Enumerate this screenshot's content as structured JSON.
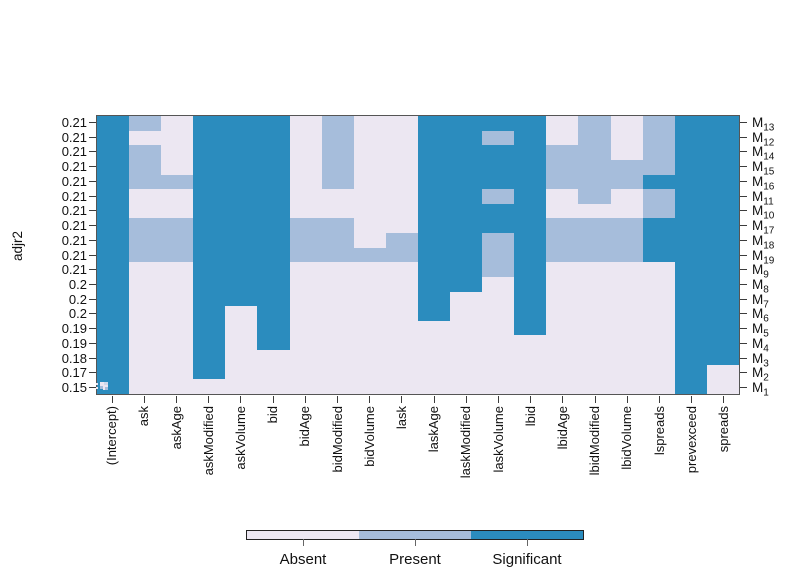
{
  "chart_data": {
    "type": "heatmap",
    "title": "",
    "ylabel": "adjr2",
    "xlabel": "",
    "columns": [
      "(Intercept)",
      "ask",
      "askAge",
      "askModified",
      "askVolume",
      "bid",
      "bidAge",
      "bidModified",
      "bidVolume",
      "lask",
      "laskAge",
      "laskModified",
      "laskVolume",
      "lbid",
      "lbidAge",
      "lbidModified",
      "lbidVolume",
      "lspreads",
      "prevexceed",
      "spreads"
    ],
    "rows": [
      {
        "model_base": "M",
        "model_sub": "13",
        "adjr2": "0.21",
        "cells": "SPASSSAPAASSSSAPAPSS"
      },
      {
        "model_base": "M",
        "model_sub": "12",
        "adjr2": "0.21",
        "cells": "SAASSSAPAASSPSAPAPSS"
      },
      {
        "model_base": "M",
        "model_sub": "14",
        "adjr2": "0.21",
        "cells": "SPASSSAPAASSSSPPAPSS"
      },
      {
        "model_base": "M",
        "model_sub": "15",
        "adjr2": "0.21",
        "cells": "SPASSSAPAASSSSPPPPSS"
      },
      {
        "model_base": "M",
        "model_sub": "16",
        "adjr2": "0.21",
        "cells": "SPPSSSAPAASSSSPPPSSS"
      },
      {
        "model_base": "M",
        "model_sub": "11",
        "adjr2": "0.21",
        "cells": "SAASSSAAAASSPSAPAPSS"
      },
      {
        "model_base": "M",
        "model_sub": "10",
        "adjr2": "0.21",
        "cells": "SAASSSAAAASSSSAAAPSS"
      },
      {
        "model_base": "M",
        "model_sub": "17",
        "adjr2": "0.21",
        "cells": "SPPSSSPPAASSSSPPPSSS"
      },
      {
        "model_base": "M",
        "model_sub": "18",
        "adjr2": "0.21",
        "cells": "SPPSSSPPAPSSPSPPPSSS"
      },
      {
        "model_base": "M",
        "model_sub": "19",
        "adjr2": "0.21",
        "cells": "SPPSSSPPPPSSPSPPPSSS"
      },
      {
        "model_base": "M",
        "model_sub": "9",
        "adjr2": "0.21",
        "cells": "SAASSSAAAASSPSAAAASS"
      },
      {
        "model_base": "M",
        "model_sub": "8",
        "adjr2": "0.2",
        "cells": "SAASSSAAAASSASAAAASS"
      },
      {
        "model_base": "M",
        "model_sub": "7",
        "adjr2": "0.2",
        "cells": "SAASSSAAAASAASAAAASS"
      },
      {
        "model_base": "M",
        "model_sub": "6",
        "adjr2": "0.2",
        "cells": "SAASASAAAASAASAAAASS"
      },
      {
        "model_base": "M",
        "model_sub": "5",
        "adjr2": "0.19",
        "cells": "SAASASAAAAAAASAAAASS"
      },
      {
        "model_base": "M",
        "model_sub": "4",
        "adjr2": "0.19",
        "cells": "SAASASAAAAAAAAAAAASS"
      },
      {
        "model_base": "M",
        "model_sub": "3",
        "adjr2": "0.18",
        "cells": "SAASAAAAAAAAAAAAAASS"
      },
      {
        "model_base": "M",
        "model_sub": "2",
        "adjr2": "0.17",
        "cells": "SAASAAAAAAAAAAAAAASA"
      },
      {
        "model_base": "M",
        "model_sub": "1",
        "adjr2": "0.15",
        "cells": "SAAAAAAAAAAAAAAAAASA"
      }
    ],
    "cell_states": {
      "A": "Absent",
      "P": "Present",
      "S": "Significant"
    },
    "colors": {
      "A": "#ECE7F2",
      "P": "#A6BDDB",
      "S": "#2B8CBE"
    },
    "legend": {
      "position": "bottom",
      "items": [
        {
          "code": "A",
          "label": "Absent",
          "color": "#ECE7F2"
        },
        {
          "code": "P",
          "label": "Present",
          "color": "#A6BDDB"
        },
        {
          "code": "S",
          "label": "Significant",
          "color": "#2B8CBE"
        }
      ]
    },
    "grid": false,
    "y_axis_side_left": "adjr2 values",
    "y_axis_side_right": "model names"
  }
}
